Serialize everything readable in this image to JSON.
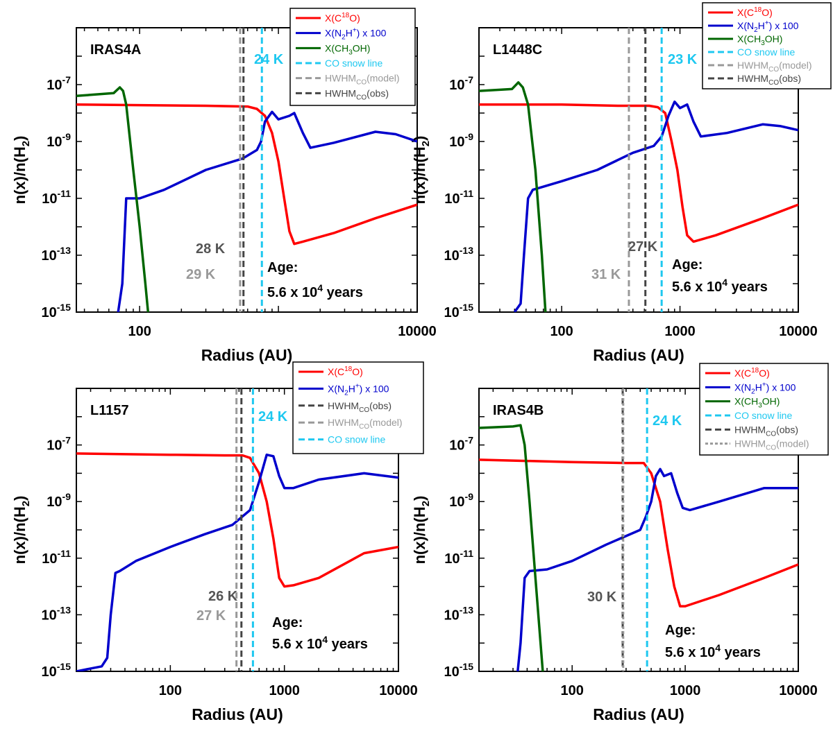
{
  "figure": {
    "ylabel": "n(x)/n(H2)",
    "xlabel": "Radius (AU)"
  },
  "chart_data": [
    {
      "type": "line",
      "title": "IRAS4A",
      "xlabel": "Radius (AU)",
      "ylabel": "n(x)/n(H2)",
      "xscale": "log",
      "yscale": "log",
      "xlim": [
        35,
        10000
      ],
      "ylim": [
        1e-15,
        1e-05
      ],
      "x_ticks": [
        100,
        10000
      ],
      "x_tick_labels": [
        "100",
        "10000"
      ],
      "y_ticks": [
        1e-15,
        1e-13,
        1e-11,
        1e-09,
        1e-07
      ],
      "y_tick_labels": [
        "10-15",
        "10-13",
        "10-11",
        "10-9",
        "10-7"
      ],
      "grid": false,
      "legend_position": "top-right",
      "series": [
        {
          "name": "X(C18O)",
          "color": "#ff0000",
          "dash": "solid",
          "points": [
            [
              35,
              2e-08
            ],
            [
              100,
              1.9e-08
            ],
            [
              300,
              1.8e-08
            ],
            [
              600,
              1.7e-08
            ],
            [
              700,
              1.4e-08
            ],
            [
              800,
              8e-09
            ],
            [
              900,
              2e-09
            ],
            [
              1000,
              2e-10
            ],
            [
              1100,
              1e-11
            ],
            [
              1200,
              7e-13
            ],
            [
              1300,
              2.5e-13
            ],
            [
              1500,
              3e-13
            ],
            [
              2500,
              6e-13
            ],
            [
              5000,
              2e-12
            ],
            [
              10000,
              6e-12
            ]
          ]
        },
        {
          "name": "X(N2H+) x 100",
          "color": "#0000cc",
          "dash": "solid",
          "points": [
            [
              70,
              1e-15
            ],
            [
              75,
              1e-14
            ],
            [
              80,
              1e-11
            ],
            [
              100,
              1e-11
            ],
            [
              150,
              2e-11
            ],
            [
              300,
              1e-10
            ],
            [
              550,
              2.5e-10
            ],
            [
              700,
              5e-10
            ],
            [
              750,
              1e-09
            ],
            [
              800,
              5e-09
            ],
            [
              900,
              1.1e-08
            ],
            [
              1000,
              6e-09
            ],
            [
              1200,
              8e-09
            ],
            [
              1300,
              1e-08
            ],
            [
              1500,
              2e-09
            ],
            [
              1700,
              6e-10
            ],
            [
              2500,
              9e-10
            ],
            [
              5000,
              2.2e-09
            ],
            [
              7000,
              1.8e-09
            ],
            [
              10000,
              1e-09
            ]
          ]
        },
        {
          "name": "X(CH3OH)",
          "color": "#006600",
          "dash": "solid",
          "points": [
            [
              35,
              4e-08
            ],
            [
              65,
              5e-08
            ],
            [
              72,
              8e-08
            ],
            [
              76,
              6e-08
            ],
            [
              80,
              2e-08
            ],
            [
              90,
              1e-10
            ],
            [
              100,
              1e-12
            ],
            [
              110,
              1e-14
            ],
            [
              115,
              1e-15
            ]
          ]
        },
        {
          "name": "CO snow line",
          "color": "#1ec8f0",
          "dash": "dashed",
          "vertical_at": 760
        },
        {
          "name": "HWHMCO(model)",
          "color": "#999999",
          "dash": "dashed",
          "vertical_at": 530
        },
        {
          "name": "HWHMCO(obs)",
          "color": "#444444",
          "dash": "dashed",
          "vertical_at": 560
        }
      ],
      "annotations": [
        {
          "text": "24 K",
          "color": "#1ec8f0"
        },
        {
          "text": "28 K",
          "color": "#555555"
        },
        {
          "text": "29 K",
          "color": "#999999"
        },
        {
          "text": "Age:",
          "color": "#000000"
        },
        {
          "text": "5.6 x 10",
          "sup": "4",
          "suffix": " years",
          "color": "#000000"
        }
      ]
    },
    {
      "type": "line",
      "title": "L1448C",
      "xlabel": "Radius (AU)",
      "ylabel": "n(x)/n(H2)",
      "xscale": "log",
      "yscale": "log",
      "xlim": [
        20,
        10000
      ],
      "ylim": [
        1e-15,
        1e-05
      ],
      "x_ticks": [
        100,
        1000,
        10000
      ],
      "x_tick_labels": [
        "100",
        "1000",
        "10000"
      ],
      "y_ticks": [
        1e-15,
        1e-13,
        1e-11,
        1e-09,
        1e-07
      ],
      "y_tick_labels": [
        "10-15",
        "10-13",
        "10-11",
        "10-9",
        "10-7"
      ],
      "grid": false,
      "legend_position": "top-right",
      "series": [
        {
          "name": "X(C18O)",
          "color": "#ff0000",
          "dash": "solid",
          "points": [
            [
              20,
              2e-08
            ],
            [
              100,
              2e-08
            ],
            [
              300,
              1.8e-08
            ],
            [
              550,
              1.8e-08
            ],
            [
              650,
              1.6e-08
            ],
            [
              750,
              1e-08
            ],
            [
              850,
              1e-09
            ],
            [
              950,
              1e-10
            ],
            [
              1050,
              5e-12
            ],
            [
              1150,
              5e-13
            ],
            [
              1300,
              3e-13
            ],
            [
              2000,
              5e-13
            ],
            [
              5000,
              2e-12
            ],
            [
              10000,
              6e-12
            ]
          ]
        },
        {
          "name": "X(N2H+) x 100",
          "color": "#0000cc",
          "dash": "solid",
          "points": [
            [
              40,
              1e-15
            ],
            [
              45,
              2e-15
            ],
            [
              48,
              1e-13
            ],
            [
              52,
              1e-11
            ],
            [
              57,
              2e-11
            ],
            [
              100,
              4e-11
            ],
            [
              200,
              1e-10
            ],
            [
              400,
              4e-10
            ],
            [
              600,
              7e-10
            ],
            [
              700,
              1.5e-09
            ],
            [
              800,
              8e-09
            ],
            [
              900,
              2.5e-08
            ],
            [
              1000,
              1.5e-08
            ],
            [
              1150,
              2e-08
            ],
            [
              1300,
              5e-09
            ],
            [
              1500,
              1.5e-09
            ],
            [
              2500,
              2e-09
            ],
            [
              5000,
              4e-09
            ],
            [
              7000,
              3.5e-09
            ],
            [
              10000,
              2.5e-09
            ]
          ]
        },
        {
          "name": "X(CH3OH)",
          "color": "#006600",
          "dash": "solid",
          "points": [
            [
              20,
              6e-08
            ],
            [
              38,
              7e-08
            ],
            [
              43,
              1.2e-07
            ],
            [
              47,
              8e-08
            ],
            [
              52,
              2e-08
            ],
            [
              60,
              1e-10
            ],
            [
              68,
              1e-13
            ],
            [
              73,
              1e-15
            ]
          ]
        },
        {
          "name": "CO snow line",
          "color": "#1ec8f0",
          "dash": "dashed",
          "vertical_at": 700
        },
        {
          "name": "HWHMCO(model)",
          "color": "#999999",
          "dash": "dashed",
          "vertical_at": 370
        },
        {
          "name": "HWHMCO(obs)",
          "color": "#444444",
          "dash": "dashed",
          "vertical_at": 510
        }
      ],
      "annotations": [
        {
          "text": "23 K",
          "color": "#1ec8f0"
        },
        {
          "text": "27 K",
          "color": "#555555"
        },
        {
          "text": "31 K",
          "color": "#999999"
        },
        {
          "text": "Age:",
          "color": "#000000"
        },
        {
          "text": "5.6 x 10",
          "sup": "4",
          "suffix": " years",
          "color": "#000000"
        }
      ]
    },
    {
      "type": "line",
      "title": "L1157",
      "xlabel": "Radius (AU)",
      "ylabel": "n(x)/n(H2)",
      "xscale": "log",
      "yscale": "log",
      "xlim": [
        15,
        10000
      ],
      "ylim": [
        1e-15,
        1e-05
      ],
      "x_ticks": [
        100,
        1000,
        10000
      ],
      "x_tick_labels": [
        "100",
        "1000",
        "10000"
      ],
      "y_ticks": [
        1e-15,
        1e-13,
        1e-11,
        1e-09,
        1e-07
      ],
      "y_tick_labels": [
        "10-15",
        "10-13",
        "10-11",
        "10-9",
        "10-7"
      ],
      "grid": false,
      "legend_position": "top-right",
      "series": [
        {
          "name": "X(C18O)",
          "color": "#ff0000",
          "dash": "solid",
          "points": [
            [
              15,
              5e-08
            ],
            [
              100,
              4.5e-08
            ],
            [
              300,
              4.3e-08
            ],
            [
              430,
              4.3e-08
            ],
            [
              500,
              3.5e-08
            ],
            [
              600,
              1e-08
            ],
            [
              700,
              1e-09
            ],
            [
              800,
              5e-11
            ],
            [
              900,
              2e-12
            ],
            [
              1000,
              1e-12
            ],
            [
              1200,
              1.1e-12
            ],
            [
              2000,
              2e-12
            ],
            [
              5000,
              1.5e-11
            ],
            [
              10000,
              2.5e-11
            ]
          ]
        },
        {
          "name": "X(N2H+) x 100",
          "color": "#0000cc",
          "dash": "solid",
          "points": [
            [
              15,
              1e-15
            ],
            [
              25,
              1.5e-15
            ],
            [
              28,
              3e-15
            ],
            [
              30,
              1e-13
            ],
            [
              33,
              3e-12
            ],
            [
              36,
              3.5e-12
            ],
            [
              50,
              8e-12
            ],
            [
              100,
              2.5e-11
            ],
            [
              200,
              7e-11
            ],
            [
              350,
              1.5e-10
            ],
            [
              500,
              5e-10
            ],
            [
              600,
              5e-09
            ],
            [
              700,
              4.5e-08
            ],
            [
              800,
              4e-08
            ],
            [
              900,
              8e-09
            ],
            [
              1000,
              3e-09
            ],
            [
              1200,
              3e-09
            ],
            [
              2000,
              6e-09
            ],
            [
              5000,
              1e-08
            ],
            [
              10000,
              7e-09
            ]
          ]
        },
        {
          "name": "HWHMCO(obs)",
          "color": "#444444",
          "dash": "dashed",
          "vertical_at": 420
        },
        {
          "name": "HWHMCO(model)",
          "color": "#999999",
          "dash": "dashed",
          "vertical_at": 380
        },
        {
          "name": "CO snow line",
          "color": "#1ec8f0",
          "dash": "dashed",
          "vertical_at": 530
        }
      ],
      "annotations": [
        {
          "text": "24 K",
          "color": "#1ec8f0"
        },
        {
          "text": "26 K",
          "color": "#555555"
        },
        {
          "text": "27 K",
          "color": "#999999"
        },
        {
          "text": "Age:",
          "color": "#000000"
        },
        {
          "text": "5.6 x 10",
          "sup": "4",
          "suffix": " years",
          "color": "#000000"
        }
      ]
    },
    {
      "type": "line",
      "title": "IRAS4B",
      "xlabel": "Radius (AU)",
      "ylabel": "n(x)/n(H2)",
      "xscale": "log",
      "yscale": "log",
      "xlim": [
        15,
        10000
      ],
      "ylim": [
        1e-15,
        1e-05
      ],
      "x_ticks": [
        100,
        1000,
        10000
      ],
      "x_tick_labels": [
        "100",
        "1000",
        "10000"
      ],
      "y_ticks": [
        1e-15,
        1e-13,
        1e-11,
        1e-09,
        1e-07
      ],
      "y_tick_labels": [
        "10-15",
        "10-13",
        "10-11",
        "10-9",
        "10-7"
      ],
      "grid": false,
      "legend_position": "top-right",
      "series": [
        {
          "name": "X(C18O)",
          "color": "#ff0000",
          "dash": "solid",
          "points": [
            [
              15,
              3e-08
            ],
            [
              100,
              2.5e-08
            ],
            [
              300,
              2.3e-08
            ],
            [
              430,
              2.3e-08
            ],
            [
              500,
              1e-08
            ],
            [
              600,
              1e-09
            ],
            [
              700,
              2e-11
            ],
            [
              800,
              1e-12
            ],
            [
              900,
              2e-13
            ],
            [
              1000,
              2e-13
            ],
            [
              2000,
              5e-13
            ],
            [
              5000,
              2e-12
            ],
            [
              10000,
              6e-12
            ]
          ]
        },
        {
          "name": "X(N2H+) x 100",
          "color": "#0000cc",
          "dash": "solid",
          "points": [
            [
              33,
              1e-15
            ],
            [
              35,
              1e-14
            ],
            [
              38,
              2e-12
            ],
            [
              42,
              3.5e-12
            ],
            [
              60,
              4e-12
            ],
            [
              100,
              8e-12
            ],
            [
              200,
              3e-11
            ],
            [
              400,
              1e-10
            ],
            [
              450,
              3e-10
            ],
            [
              500,
              1e-09
            ],
            [
              550,
              8e-09
            ],
            [
              600,
              1.4e-08
            ],
            [
              650,
              8e-09
            ],
            [
              750,
              1e-08
            ],
            [
              850,
              2e-09
            ],
            [
              950,
              6e-10
            ],
            [
              1100,
              5e-10
            ],
            [
              2000,
              1e-09
            ],
            [
              5000,
              3e-09
            ],
            [
              10000,
              3e-09
            ]
          ]
        },
        {
          "name": "X(CH3OH)",
          "color": "#006600",
          "dash": "solid",
          "points": [
            [
              15,
              4e-07
            ],
            [
              30,
              4.5e-07
            ],
            [
              35,
              5e-07
            ],
            [
              38,
              1e-07
            ],
            [
              42,
              1e-09
            ],
            [
              48,
              1e-12
            ],
            [
              55,
              1e-15
            ]
          ]
        },
        {
          "name": "CO snow line",
          "color": "#1ec8f0",
          "dash": "dashed",
          "vertical_at": 460
        },
        {
          "name": "HWHMCO(obs)",
          "color": "#444444",
          "dash": "dashed",
          "vertical_at": 280
        },
        {
          "name": "HWHMCO(model)",
          "color": "#999999",
          "dash": "dotted",
          "vertical_at": 283
        }
      ],
      "annotations": [
        {
          "text": "24 K",
          "color": "#1ec8f0"
        },
        {
          "text": "30 K",
          "color": "#555555"
        },
        {
          "text": "Age:",
          "color": "#000000"
        },
        {
          "text": "5.6 x 10",
          "sup": "4",
          "suffix": " years",
          "color": "#000000"
        }
      ]
    }
  ]
}
